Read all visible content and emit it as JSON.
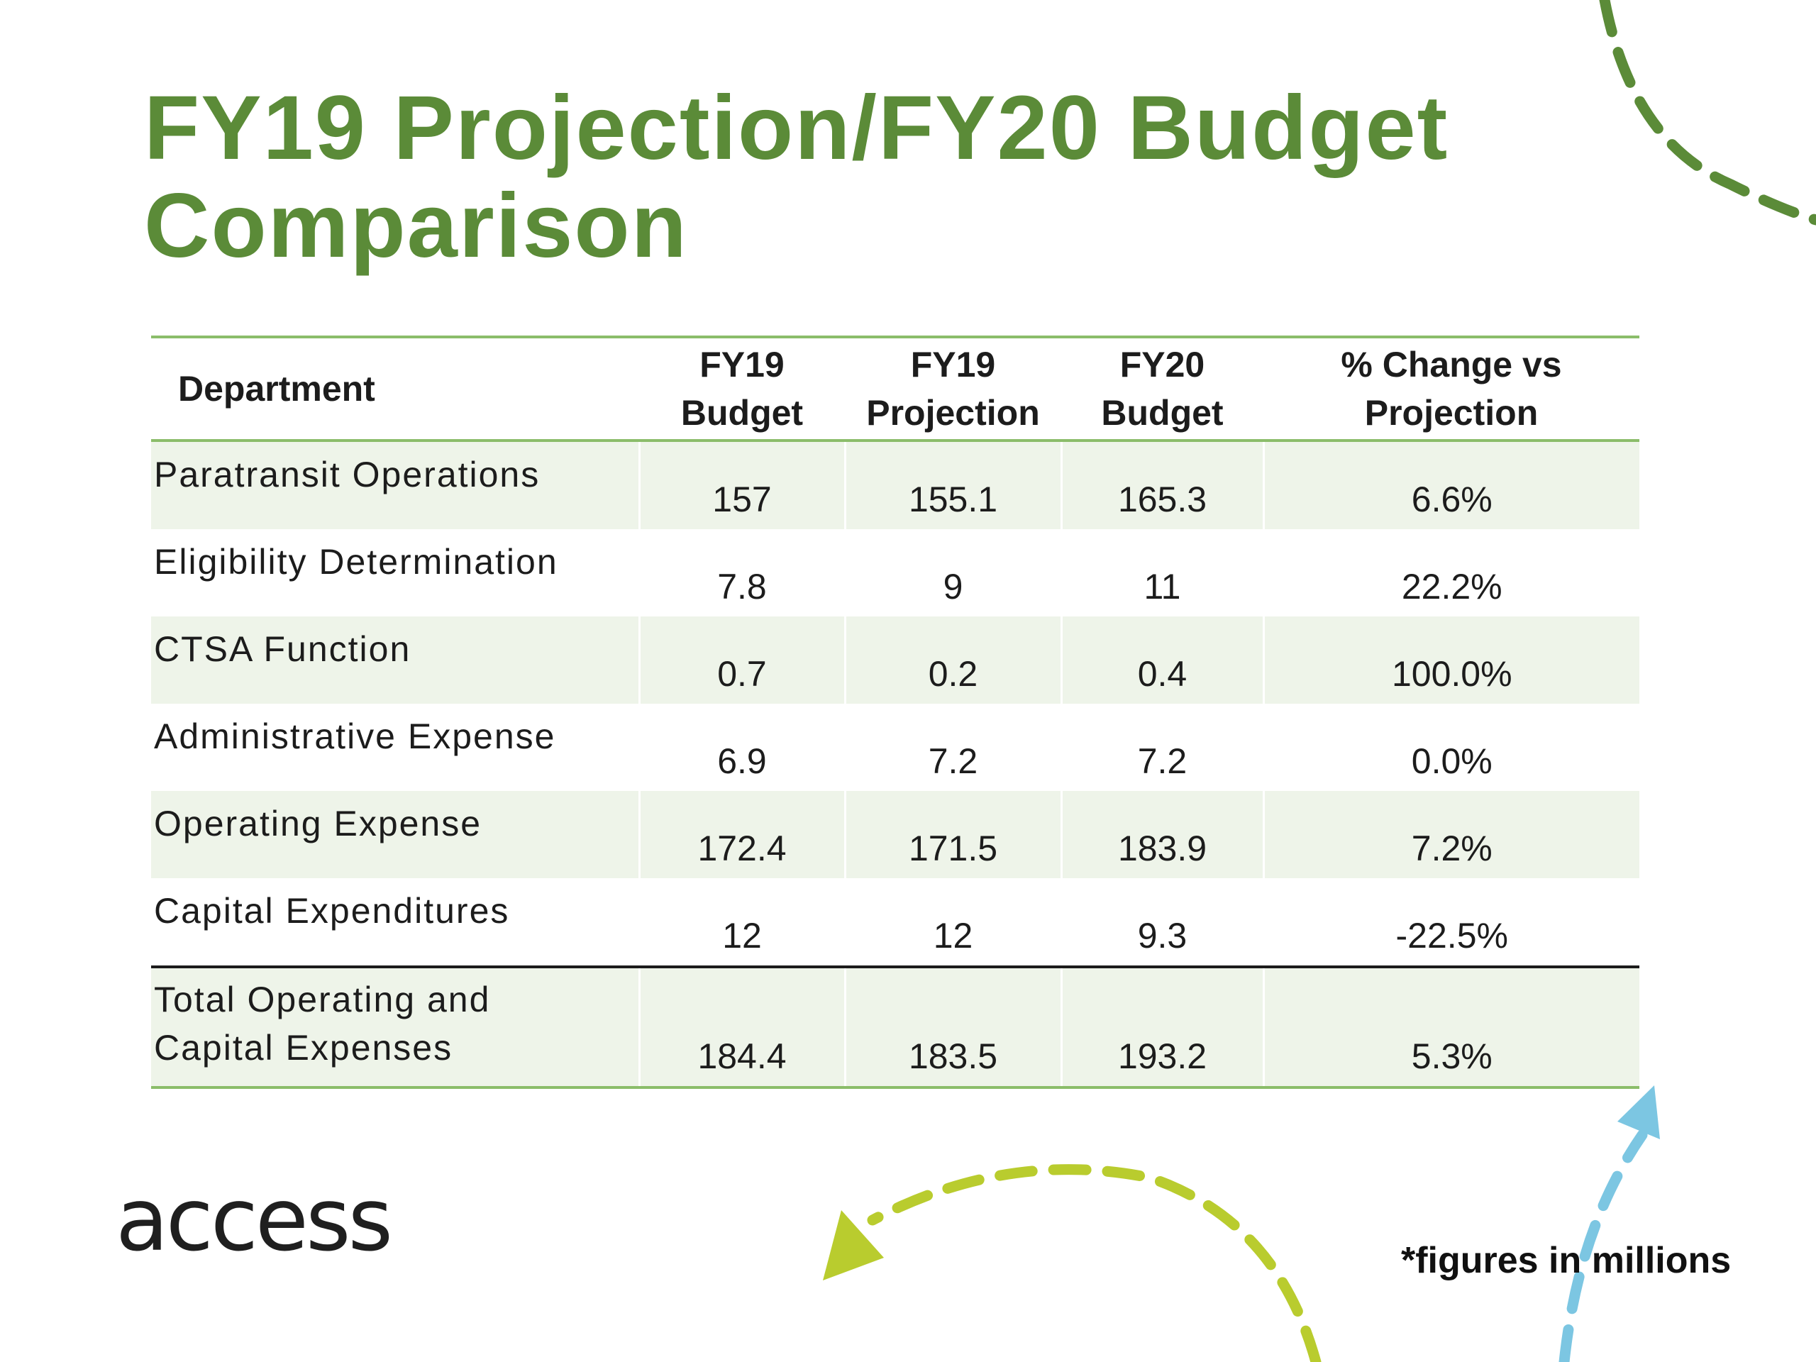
{
  "slide": {
    "title_line1": "FY19 Projection/FY20 Budget",
    "title_line2": "Comparison",
    "logo_text": "access",
    "note": "*figures in millions",
    "colors": {
      "title_green": "#5b8b38",
      "rule_green": "#8bbd6a",
      "row_shade": "#eef4e9",
      "arrow_olive": "#5b8b38",
      "arrow_lime": "#b9cc2e",
      "arrow_sky": "#7cc6e2"
    }
  },
  "table": {
    "headers": [
      "Department",
      "FY19\nBudget",
      "FY19\nProjection",
      "FY20\nBudget",
      "% Change vs\nProjection"
    ],
    "rows": [
      {
        "department": "Paratransit Operations",
        "fy19_budget": "157",
        "fy19_projection": "155.1",
        "fy20_budget": "165.3",
        "pct_change": "6.6%"
      },
      {
        "department": "Eligibility Determination",
        "fy19_budget": "7.8",
        "fy19_projection": "9",
        "fy20_budget": "11",
        "pct_change": "22.2%"
      },
      {
        "department": "CTSA Function",
        "fy19_budget": "0.7",
        "fy19_projection": "0.2",
        "fy20_budget": "0.4",
        "pct_change": "100.0%"
      },
      {
        "department": "Administrative Expense",
        "fy19_budget": "6.9",
        "fy19_projection": "7.2",
        "fy20_budget": "7.2",
        "pct_change": "0.0%"
      },
      {
        "department": "Operating Expense",
        "fy19_budget": "172.4",
        "fy19_projection": "171.5",
        "fy20_budget": "183.9",
        "pct_change": "7.2%"
      },
      {
        "department": "Capital Expenditures",
        "fy19_budget": "12",
        "fy19_projection": "12",
        "fy20_budget": "9.3",
        "pct_change": "-22.5%"
      }
    ],
    "total": {
      "department": "Total Operating and\nCapital Expenses",
      "fy19_budget": "184.4",
      "fy19_projection": "183.5",
      "fy20_budget": "193.2",
      "pct_change": "5.3%"
    }
  }
}
